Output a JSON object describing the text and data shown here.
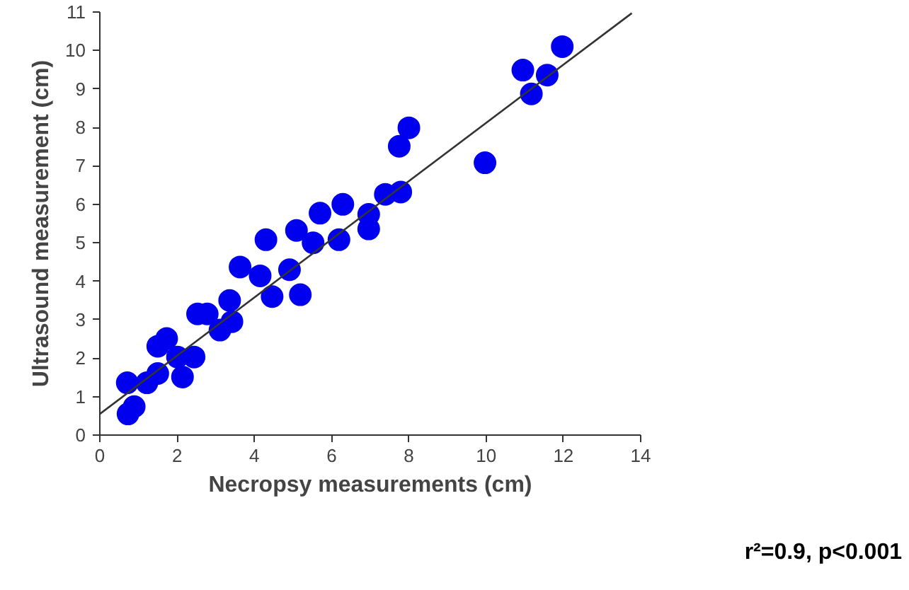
{
  "chart_data": {
    "type": "scatter",
    "xlabel": "Necropsy measurements (cm)",
    "ylabel": "Ultrasound measurement (cm)",
    "xlim": [
      0,
      14
    ],
    "ylim": [
      0,
      11
    ],
    "xticks": [
      0,
      2,
      4,
      6,
      8,
      10,
      12,
      14
    ],
    "yticks": [
      0,
      1,
      2,
      3,
      4,
      5,
      6,
      7,
      8,
      9,
      10,
      11
    ],
    "grid": false,
    "marker": "circle",
    "series": [
      {
        "color": "#0000ee",
        "x": [
          0.71,
          0.73,
          0.89,
          1.22,
          1.5,
          1.5,
          1.73,
          2.01,
          2.14,
          2.44,
          2.53,
          2.78,
          3.11,
          3.42,
          3.36,
          3.63,
          4.15,
          4.3,
          4.46,
          4.91,
          5.19,
          5.09,
          5.52,
          5.7,
          6.19,
          6.29,
          6.96,
          6.96,
          7.39,
          7.79,
          7.75,
          8.0,
          9.97,
          10.95,
          11.17,
          11.58,
          11.97
        ],
        "values": [
          1.36,
          0.55,
          0.74,
          1.36,
          1.6,
          2.31,
          2.51,
          2.03,
          1.51,
          2.03,
          3.15,
          3.15,
          2.73,
          2.95,
          3.5,
          4.37,
          4.14,
          5.08,
          3.6,
          4.3,
          3.65,
          5.32,
          5.0,
          5.77,
          5.08,
          6.0,
          5.74,
          5.36,
          6.26,
          6.32,
          7.51,
          7.99,
          7.08,
          9.49,
          8.87,
          9.36,
          10.1
        ]
      },
      {
        "type": "line",
        "marker": "none",
        "color": "#333333",
        "x": [
          0,
          13.77
        ],
        "values": [
          0.55,
          10.97
        ]
      }
    ],
    "annotations": [
      "r²=0.9, p<0.001"
    ]
  }
}
